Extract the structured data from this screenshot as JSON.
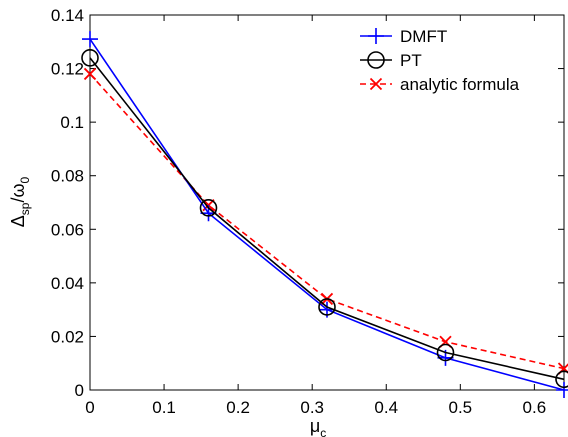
{
  "chart_data": {
    "type": "line",
    "title": "",
    "xlabel": "μ",
    "xlabel_sub": "c",
    "ylabel": "Δ",
    "ylabel_sub": "sp",
    "ylabel_mid": "/ω",
    "ylabel_sub2": "0",
    "xlim": [
      0,
      0.64
    ],
    "ylim": [
      0,
      0.14
    ],
    "xticks": [
      0,
      0.1,
      0.2,
      0.3,
      0.4,
      0.5,
      0.6
    ],
    "xtick_labels": [
      "0",
      "0.1",
      "0.2",
      "0.3",
      "0.4",
      "0.5",
      "0.6"
    ],
    "yticks": [
      0,
      0.02,
      0.04,
      0.06,
      0.08,
      0.1,
      0.12,
      0.14
    ],
    "ytick_labels": [
      "0",
      "0.02",
      "0.04",
      "0.06",
      "0.08",
      "0.1",
      "0.12",
      "0.14"
    ],
    "grid": false,
    "legend_position": "top-right",
    "series": [
      {
        "name": "DMFT",
        "color": "#0000ff",
        "line": "solid",
        "marker": "plus",
        "x": [
          0,
          0.16,
          0.32,
          0.48,
          0.64
        ],
        "y": [
          0.131,
          0.066,
          0.03,
          0.012,
          0.0
        ]
      },
      {
        "name": "PT",
        "color": "#000000",
        "line": "solid",
        "marker": "circle",
        "x": [
          0,
          0.16,
          0.32,
          0.48,
          0.64
        ],
        "y": [
          0.124,
          0.068,
          0.031,
          0.014,
          0.004
        ]
      },
      {
        "name": "analytic formula",
        "color": "#ff0000",
        "line": "dashed",
        "marker": "x",
        "x": [
          0,
          0.16,
          0.32,
          0.48,
          0.64
        ],
        "y": [
          0.118,
          0.069,
          0.034,
          0.018,
          0.008
        ]
      }
    ]
  }
}
